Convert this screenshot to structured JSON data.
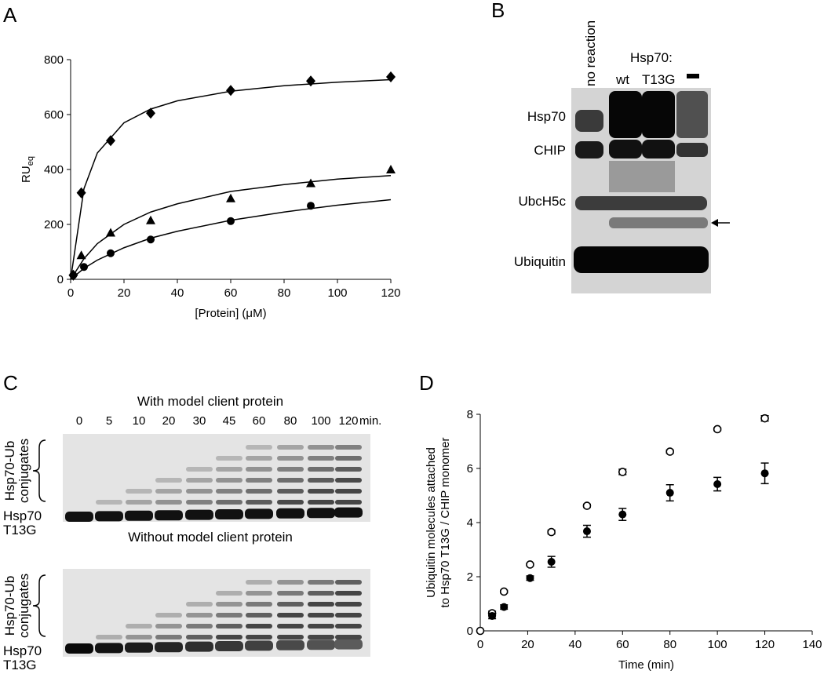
{
  "panel_letters": [
    "A",
    "B",
    "C",
    "D"
  ],
  "chart_data": [
    {
      "type": "scatter",
      "xlabel": "[Protein] (μM)",
      "ylabel": "RU",
      "ylabel_sub": "eq",
      "xlim": [
        0,
        120
      ],
      "xticks": [
        0,
        20,
        40,
        60,
        80,
        100,
        120
      ],
      "ylim": [
        0,
        800
      ],
      "yticks": [
        0,
        200,
        400,
        600,
        800
      ],
      "grid": false,
      "series": [
        {
          "marker": "diamond",
          "color": "#000000",
          "x": [
            1,
            4,
            15,
            30,
            60,
            90,
            120
          ],
          "values": [
            15,
            315,
            505,
            605,
            688,
            722,
            737
          ]
        },
        {
          "marker": "triangle",
          "color": "#000000",
          "x": [
            4,
            15,
            30,
            60,
            90,
            120
          ],
          "values": [
            88,
            170,
            215,
            295,
            350,
            400
          ]
        },
        {
          "marker": "circle",
          "color": "#000000",
          "x": [
            1,
            5,
            15,
            30,
            60,
            90
          ],
          "values": [
            15,
            45,
            95,
            145,
            212,
            268
          ]
        },
        {
          "marker": "none",
          "color": "#000000",
          "x": [
            0,
            5,
            10,
            20,
            30,
            40,
            60,
            80,
            100,
            120
          ],
          "values": [
            0,
            330,
            460,
            570,
            620,
            650,
            685,
            705,
            718,
            727
          ]
        },
        {
          "marker": "none",
          "color": "#000000",
          "x": [
            0,
            5,
            10,
            20,
            30,
            40,
            60,
            80,
            100,
            120
          ],
          "values": [
            0,
            75,
            130,
            200,
            245,
            275,
            320,
            345,
            365,
            378
          ]
        },
        {
          "marker": "none",
          "color": "#000000",
          "x": [
            0,
            5,
            10,
            20,
            30,
            40,
            60,
            80,
            100,
            120
          ],
          "values": [
            0,
            40,
            70,
            115,
            150,
            175,
            215,
            245,
            270,
            290
          ]
        }
      ]
    },
    {
      "type": "scatter",
      "xlabel": "Time (min)",
      "ylabel": [
        "Ubiquitin molecules attached",
        "to Hsp70 T13G / CHIP monomer"
      ],
      "xlim": [
        0,
        140
      ],
      "xticks": [
        0,
        20,
        40,
        60,
        80,
        100,
        120,
        140
      ],
      "ylim": [
        0,
        8
      ],
      "yticks": [
        0,
        2,
        4,
        6,
        8
      ],
      "grid": false,
      "series": [
        {
          "marker": "circle-open",
          "color": "#000000",
          "x": [
            0,
            5,
            10,
            21,
            30,
            45,
            60,
            80,
            100,
            120
          ],
          "values": [
            0,
            0.65,
            1.45,
            2.45,
            3.65,
            4.62,
            5.87,
            6.62,
            7.45,
            7.85
          ],
          "errors": [
            0,
            0.08,
            0.05,
            0.05,
            0.07,
            0.06,
            0.1,
            0.06,
            0.05,
            0.1
          ]
        },
        {
          "marker": "circle",
          "color": "#000000",
          "x": [
            5,
            10,
            21,
            30,
            45,
            60,
            80,
            100,
            120
          ],
          "values": [
            0.55,
            0.88,
            1.95,
            2.55,
            3.68,
            4.3,
            5.1,
            5.42,
            5.82
          ],
          "errors": [
            0.1,
            0.08,
            0.08,
            0.2,
            0.22,
            0.22,
            0.3,
            0.25,
            0.38
          ]
        }
      ]
    }
  ],
  "gel_b": {
    "no_reaction": "no reaction",
    "group": "Hsp70:",
    "wt": "wt",
    "t13g": "T13G",
    "bands": [
      "Hsp70",
      "CHIP",
      "UbcH5c",
      "Ubiquitin"
    ]
  },
  "gel_c": {
    "time_points": [
      "0",
      "5",
      "10",
      "20",
      "30",
      "45",
      "60",
      "80",
      "100",
      "120"
    ],
    "time_unit": "min.",
    "gels": [
      {
        "title": "With model client protein",
        "bracket_label": [
          "Hsp70-Ub",
          "conjugates"
        ],
        "band_label": [
          "Hsp70",
          "T13G"
        ]
      },
      {
        "title": "Without model client protein",
        "bracket_label": [
          "Hsp70-Ub",
          "conjugates"
        ],
        "band_label": [
          "Hsp70",
          "T13G"
        ]
      }
    ]
  }
}
